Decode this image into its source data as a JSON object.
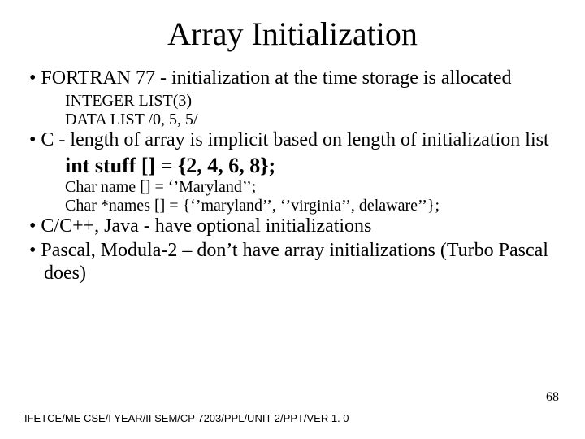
{
  "title": "Array Initialization",
  "bullets": {
    "b1": "FORTRAN 77 - initialization at the time storage is allocated",
    "b1_sub1": "INTEGER LIST(3)",
    "b1_sub2": "DATA LIST /0, 5, 5/",
    "b2": "C - length of array is implicit based on length of initialization list",
    "b2_emph": "int stuff [] = {2, 4, 6, 8};",
    "b2_sub1": "Char name [] = ‘’Maryland’’;",
    "b2_sub2": "Char *names [] = {‘’maryland’’, ‘’virginia’’, delaware’’};",
    "b3": "C/C++, Java - have optional initializations",
    "b4": "Pascal, Modula-2 – don’t have array initializations (Turbo Pascal does)"
  },
  "slidenum": "68",
  "footer": "IFETCE/ME CSE/I YEAR/II SEM/CP 7203/PPL/UNIT 2/PPT/VER 1. 0"
}
